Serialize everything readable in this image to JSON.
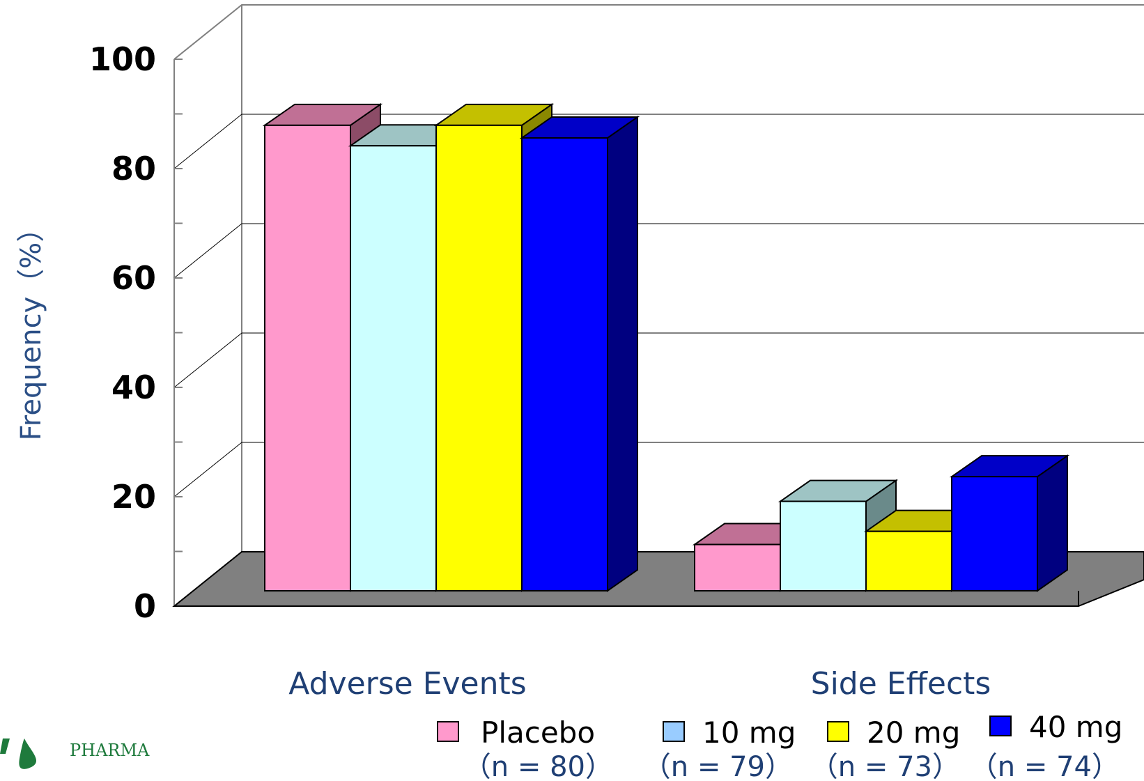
{
  "chart_data": {
    "type": "bar",
    "ylabel": "Frequency（%）",
    "ylim": [
      0,
      100
    ],
    "yticks": [
      "0",
      "20",
      "40",
      "60",
      "80",
      "100"
    ],
    "categories": [
      "Adverse Events",
      "Side Effects"
    ],
    "series": [
      {
        "name": "Placebo",
        "n_label": "（n = 80）",
        "values": [
          88.5,
          8.8
        ],
        "color": "#ff99cc",
        "top_color": "#c07095",
        "side_color": "#8c4c67"
      },
      {
        "name": "10 mg",
        "n_label": "（n = 79）",
        "values": [
          84.6,
          17.0
        ],
        "color": "#ccffff",
        "top_color": "#9ec4c4",
        "side_color": "#6a8a8a"
      },
      {
        "name": "20 mg",
        "n_label": "（n = 73）",
        "values": [
          88.5,
          11.3
        ],
        "color": "#ffff00",
        "top_color": "#c4c000",
        "side_color": "#8a8800"
      },
      {
        "name": "40 mg",
        "n_label": "（n = 74）",
        "values": [
          86.1,
          21.7
        ],
        "color": "#0000ff",
        "top_color": "#0000c8",
        "side_color": "#000080"
      }
    ],
    "legend_position": "bottom-right",
    "legend_swatch_colors": [
      "#ff99cc",
      "#99ccff",
      "#ffff00",
      "#0000ff"
    ],
    "grid": true,
    "floor_color": "#808080"
  },
  "logo": {
    "text": "PHARMA"
  }
}
